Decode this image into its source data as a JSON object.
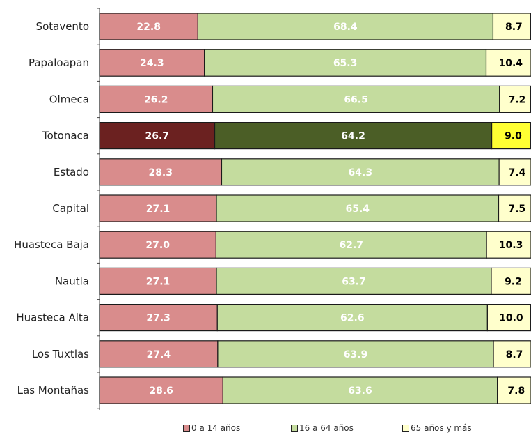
{
  "chart_data": {
    "type": "bar",
    "orientation": "horizontal",
    "stacked": true,
    "categories": [
      "Sotavento",
      "Papaloapan",
      "Olmeca",
      "Totonaca",
      "Estado",
      "Capital",
      "Huasteca Baja",
      "Nautla",
      "Huasteca Alta",
      "Los Tuxtlas",
      "Las Montañas"
    ],
    "series": [
      {
        "name": "0 a 14 años",
        "color": "#d98c8c",
        "highlight_color": "#6b2120",
        "values": [
          22.8,
          24.3,
          26.2,
          26.7,
          28.3,
          27.1,
          27.0,
          27.1,
          27.3,
          27.4,
          28.6
        ]
      },
      {
        "name": "16 a 64 años",
        "color": "#c4dc9e",
        "highlight_color": "#4b5e26",
        "values": [
          68.4,
          65.3,
          66.5,
          64.2,
          64.3,
          65.4,
          62.7,
          63.7,
          62.6,
          63.9,
          63.6
        ]
      },
      {
        "name": "65 años y más",
        "color": "#ffffcc",
        "highlight_color": "#ffff33",
        "values": [
          8.7,
          10.4,
          7.2,
          9.0,
          7.4,
          7.5,
          10.3,
          9.2,
          10.0,
          8.7,
          7.8
        ]
      }
    ],
    "highlight_category": "Totonaca",
    "xlim": [
      0,
      100
    ],
    "legend_position": "bottom",
    "grid": false
  }
}
